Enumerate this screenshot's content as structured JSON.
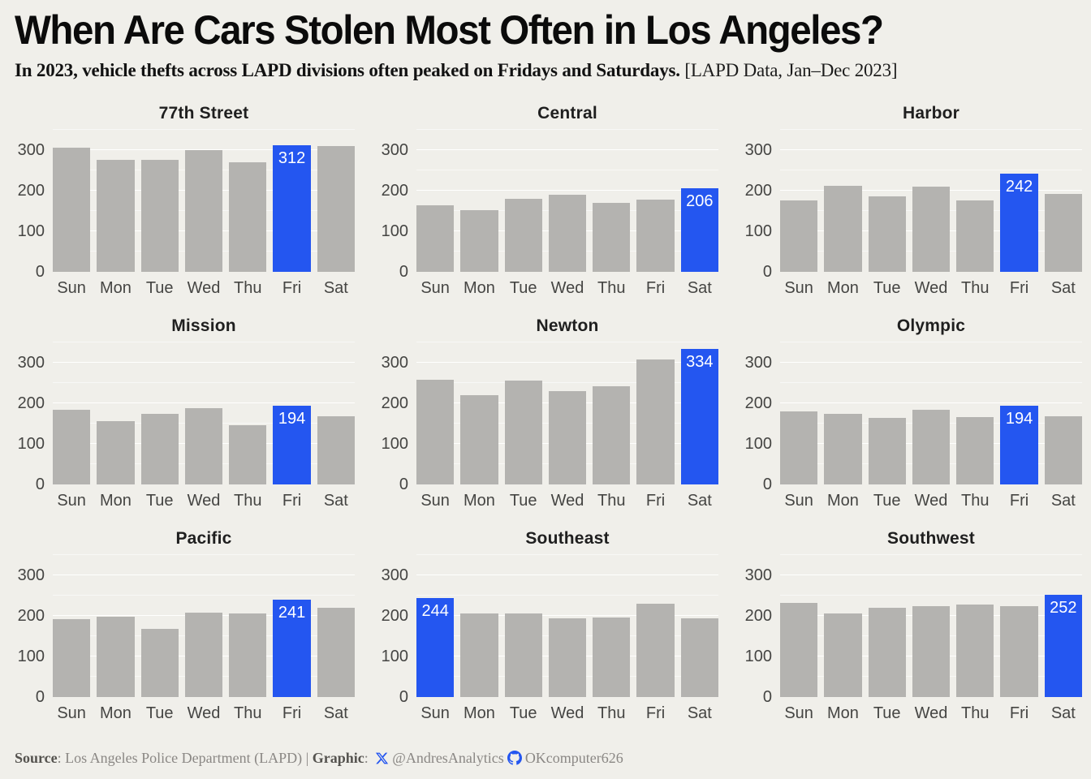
{
  "header": {
    "title": "When Are Cars Stolen Most Often in Los Angeles?",
    "subtitle_bold": "In 2023, vehicle thefts across LAPD divisions often peaked on Fridays and Saturdays.",
    "subtitle_note": "[LAPD Data, Jan–Dec 2023]"
  },
  "footer": {
    "source_label": "Source",
    "source_text": ": Los Angeles Police Department (LAPD) | ",
    "graphic_label": "Graphic",
    "graphic_colon": ": ",
    "x_icon": "x-logo-icon",
    "twitter_handle": "@AndresAnalytics",
    "github_icon": "github-octocat-icon",
    "github_handle": "OKcomputer626"
  },
  "colors": {
    "background": "#F0EFEA",
    "bar_gray": "#B4B3B0",
    "highlight_blue": "#2456F0",
    "axis_text": "#454543",
    "footer_icon_blue": "#2456F0"
  },
  "axis": {
    "ymax": 354,
    "yticks": [
      300,
      200,
      100,
      0
    ],
    "major_gridlines": [
      100,
      200,
      300
    ],
    "minor_gridlines": [
      50,
      150,
      250,
      350
    ],
    "days": [
      "Sun",
      "Mon",
      "Tue",
      "Wed",
      "Thu",
      "Fri",
      "Sat"
    ]
  },
  "chart_data": [
    {
      "type": "bar",
      "title": "77th Street",
      "categories": [
        "Sun",
        "Mon",
        "Tue",
        "Wed",
        "Thu",
        "Fri",
        "Sat"
      ],
      "values": [
        307,
        277,
        277,
        300,
        270,
        312,
        310
      ],
      "highlight": {
        "day": "Fri",
        "index": 5,
        "value": 312
      },
      "ylim": [
        0,
        350
      ],
      "ylabel": "",
      "xlabel": ""
    },
    {
      "type": "bar",
      "title": "Central",
      "categories": [
        "Sun",
        "Mon",
        "Tue",
        "Wed",
        "Thu",
        "Fri",
        "Sat"
      ],
      "values": [
        165,
        152,
        180,
        190,
        171,
        179,
        206
      ],
      "highlight": {
        "day": "Sat",
        "index": 6,
        "value": 206
      },
      "ylim": [
        0,
        350
      ],
      "ylabel": "",
      "xlabel": ""
    },
    {
      "type": "bar",
      "title": "Harbor",
      "categories": [
        "Sun",
        "Mon",
        "Tue",
        "Wed",
        "Thu",
        "Fri",
        "Sat"
      ],
      "values": [
        176,
        212,
        187,
        210,
        177,
        242,
        193
      ],
      "highlight": {
        "day": "Fri",
        "index": 5,
        "value": 242
      },
      "ylim": [
        0,
        350
      ],
      "ylabel": "",
      "xlabel": ""
    },
    {
      "type": "bar",
      "title": "Mission",
      "categories": [
        "Sun",
        "Mon",
        "Tue",
        "Wed",
        "Thu",
        "Fri",
        "Sat"
      ],
      "values": [
        185,
        157,
        174,
        188,
        146,
        194,
        168
      ],
      "highlight": {
        "day": "Fri",
        "index": 5,
        "value": 194
      },
      "ylim": [
        0,
        350
      ],
      "ylabel": "",
      "xlabel": ""
    },
    {
      "type": "bar",
      "title": "Newton",
      "categories": [
        "Sun",
        "Mon",
        "Tue",
        "Wed",
        "Thu",
        "Fri",
        "Sat"
      ],
      "values": [
        259,
        220,
        256,
        231,
        242,
        309,
        334
      ],
      "highlight": {
        "day": "Sat",
        "index": 6,
        "value": 334
      },
      "ylim": [
        0,
        350
      ],
      "ylabel": "",
      "xlabel": ""
    },
    {
      "type": "bar",
      "title": "Olympic",
      "categories": [
        "Sun",
        "Mon",
        "Tue",
        "Wed",
        "Thu",
        "Fri",
        "Sat"
      ],
      "values": [
        181,
        174,
        165,
        185,
        166,
        194,
        168
      ],
      "highlight": {
        "day": "Fri",
        "index": 5,
        "value": 194
      },
      "ylim": [
        0,
        350
      ],
      "ylabel": "",
      "xlabel": ""
    },
    {
      "type": "bar",
      "title": "Pacific",
      "categories": [
        "Sun",
        "Mon",
        "Tue",
        "Wed",
        "Thu",
        "Fri",
        "Sat"
      ],
      "values": [
        192,
        199,
        168,
        209,
        207,
        241,
        221
      ],
      "highlight": {
        "day": "Fri",
        "index": 5,
        "value": 241
      },
      "ylim": [
        0,
        350
      ],
      "ylabel": "",
      "xlabel": ""
    },
    {
      "type": "bar",
      "title": "Southeast",
      "categories": [
        "Sun",
        "Mon",
        "Tue",
        "Wed",
        "Thu",
        "Fri",
        "Sat"
      ],
      "values": [
        244,
        207,
        207,
        194,
        197,
        230,
        195
      ],
      "highlight": {
        "day": "Sun",
        "index": 0,
        "value": 244
      },
      "ylim": [
        0,
        350
      ],
      "ylabel": "",
      "xlabel": ""
    },
    {
      "type": "bar",
      "title": "Southwest",
      "categories": [
        "Sun",
        "Mon",
        "Tue",
        "Wed",
        "Thu",
        "Fri",
        "Sat"
      ],
      "values": [
        232,
        207,
        220,
        225,
        229,
        224,
        252
      ],
      "highlight": {
        "day": "Sat",
        "index": 6,
        "value": 252
      },
      "ylim": [
        0,
        350
      ],
      "ylabel": "",
      "xlabel": ""
    }
  ]
}
